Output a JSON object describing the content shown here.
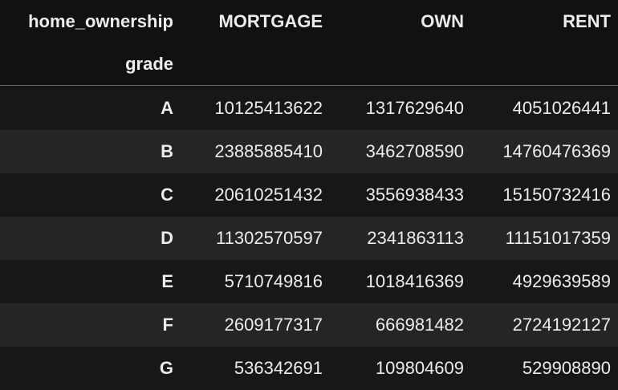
{
  "table": {
    "columns_name": "home_ownership",
    "index_name": "grade",
    "columns": [
      "MORTGAGE",
      "OWN",
      "RENT"
    ],
    "rows": [
      {
        "grade": "A",
        "values": [
          "10125413622",
          "1317629640",
          "4051026441"
        ]
      },
      {
        "grade": "B",
        "values": [
          "23885885410",
          "3462708590",
          "14760476369"
        ]
      },
      {
        "grade": "C",
        "values": [
          "20610251432",
          "3556938433",
          "15150732416"
        ]
      },
      {
        "grade": "D",
        "values": [
          "11302570597",
          "2341863113",
          "11151017359"
        ]
      },
      {
        "grade": "E",
        "values": [
          "5710749816",
          "1018416369",
          "4929639589"
        ]
      },
      {
        "grade": "F",
        "values": [
          "2609177317",
          "666981482",
          "2724192127"
        ]
      },
      {
        "grade": "G",
        "values": [
          "536342691",
          "109804609",
          "529908890"
        ]
      }
    ]
  },
  "colors": {
    "background": "#111111",
    "row_odd": "#171717",
    "row_even": "#252525",
    "text": "#ececec",
    "header_rule": "#6b6b6b"
  }
}
